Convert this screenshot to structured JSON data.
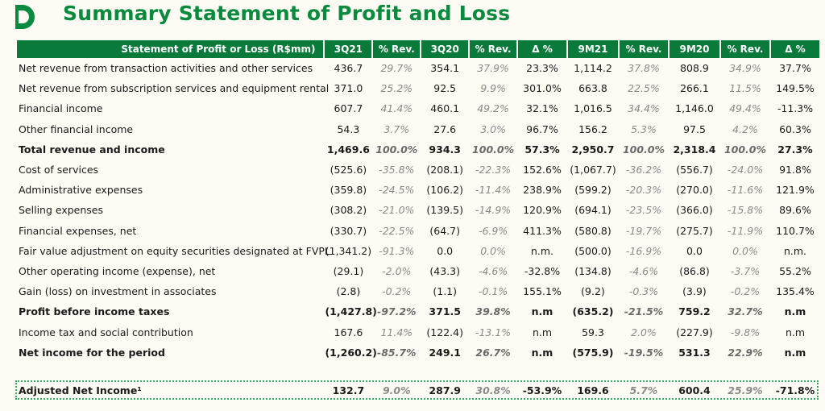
{
  "title": "Summary Statement of Profit and Loss",
  "colors": {
    "brand_green": "#0a8a3e",
    "header_green": "#0a7a3b",
    "background": "#fdfbf3"
  },
  "icons": {
    "logo": "stone-logo-icon"
  },
  "table": {
    "headers": [
      "Statement of Profit or Loss (R$mm)",
      "3Q21",
      "% Rev.",
      "3Q20",
      "% Rev.",
      "Δ %",
      "9M21",
      "% Rev.",
      "9M20",
      "% Rev.",
      "Δ %"
    ],
    "rows": [
      {
        "bold": false,
        "cells": [
          "Net revenue from transaction activities and other services",
          "436.7",
          "29.7%",
          "354.1",
          "37.9%",
          "23.3%",
          "1,114.2",
          "37.8%",
          "808.9",
          "34.9%",
          "37.7%"
        ]
      },
      {
        "bold": false,
        "cells": [
          "Net revenue from subscription services and equipment rental",
          "371.0",
          "25.2%",
          "92.5",
          "9.9%",
          "301.0%",
          "663.8",
          "22.5%",
          "266.1",
          "11.5%",
          "149.5%"
        ]
      },
      {
        "bold": false,
        "cells": [
          "Financial income",
          "607.7",
          "41.4%",
          "460.1",
          "49.2%",
          "32.1%",
          "1,016.5",
          "34.4%",
          "1,146.0",
          "49.4%",
          "-11.3%"
        ]
      },
      {
        "bold": false,
        "cells": [
          "Other financial income",
          "54.3",
          "3.7%",
          "27.6",
          "3.0%",
          "96.7%",
          "156.2",
          "5.3%",
          "97.5",
          "4.2%",
          "60.3%"
        ]
      },
      {
        "bold": true,
        "cells": [
          "Total revenue and income",
          "1,469.6",
          "100.0%",
          "934.3",
          "100.0%",
          "57.3%",
          "2,950.7",
          "100.0%",
          "2,318.4",
          "100.0%",
          "27.3%"
        ]
      },
      {
        "bold": false,
        "cells": [
          "Cost of services",
          "(525.6)",
          "-35.8%",
          "(208.1)",
          "-22.3%",
          "152.6%",
          "(1,067.7)",
          "-36.2%",
          "(556.7)",
          "-24.0%",
          "91.8%"
        ]
      },
      {
        "bold": false,
        "cells": [
          "Administrative expenses",
          "(359.8)",
          "-24.5%",
          "(106.2)",
          "-11.4%",
          "238.9%",
          "(599.2)",
          "-20.3%",
          "(270.0)",
          "-11.6%",
          "121.9%"
        ]
      },
      {
        "bold": false,
        "cells": [
          "Selling expenses",
          "(308.2)",
          "-21.0%",
          "(139.5)",
          "-14.9%",
          "120.9%",
          "(694.1)",
          "-23.5%",
          "(366.0)",
          "-15.8%",
          "89.6%"
        ]
      },
      {
        "bold": false,
        "cells": [
          "Financial expenses, net",
          "(330.7)",
          "-22.5%",
          "(64.7)",
          "-6.9%",
          "411.3%",
          "(580.8)",
          "-19.7%",
          "(275.7)",
          "-11.9%",
          "110.7%"
        ]
      },
      {
        "bold": false,
        "cells": [
          "Fair value adjustment on equity securities designated at FVPL",
          "(1,341.2)",
          "-91.3%",
          "0.0",
          "0.0%",
          "n.m.",
          "(500.0)",
          "-16.9%",
          "0.0",
          "0.0%",
          "n.m."
        ]
      },
      {
        "bold": false,
        "cells": [
          "Other operating income (expense), net",
          "(29.1)",
          "-2.0%",
          "(43.3)",
          "-4.6%",
          "-32.8%",
          "(134.8)",
          "-4.6%",
          "(86.8)",
          "-3.7%",
          "55.2%"
        ]
      },
      {
        "bold": false,
        "cells": [
          "Gain (loss) on investment in associates",
          "(2.8)",
          "-0.2%",
          "(1.1)",
          "-0.1%",
          "155.1%",
          "(9.2)",
          "-0.3%",
          "(3.9)",
          "-0.2%",
          "135.4%"
        ]
      },
      {
        "bold": true,
        "cells": [
          "Profit before income taxes",
          "(1,427.8)",
          "-97.2%",
          "371.5",
          "39.8%",
          "n.m",
          "(635.2)",
          "-21.5%",
          "759.2",
          "32.7%",
          "n.m"
        ]
      },
      {
        "bold": false,
        "cells": [
          "Income tax and social contribution",
          "167.6",
          "11.4%",
          "(122.4)",
          "-13.1%",
          "n.m",
          "59.3",
          "2.0%",
          "(227.9)",
          "-9.8%",
          "n.m"
        ]
      },
      {
        "bold": true,
        "cells": [
          "Net income for the period",
          "(1,260.2)",
          "-85.7%",
          "249.1",
          "26.7%",
          "n.m",
          "(575.9)",
          "-19.5%",
          "531.3",
          "22.9%",
          "n.m"
        ]
      }
    ],
    "adjusted": {
      "cells": [
        "Adjusted Net Income¹",
        "132.7",
        "9.0%",
        "287.9",
        "30.8%",
        "-53.9%",
        "169.6",
        "5.7%",
        "600.4",
        "25.9%",
        "-71.8%"
      ]
    }
  }
}
